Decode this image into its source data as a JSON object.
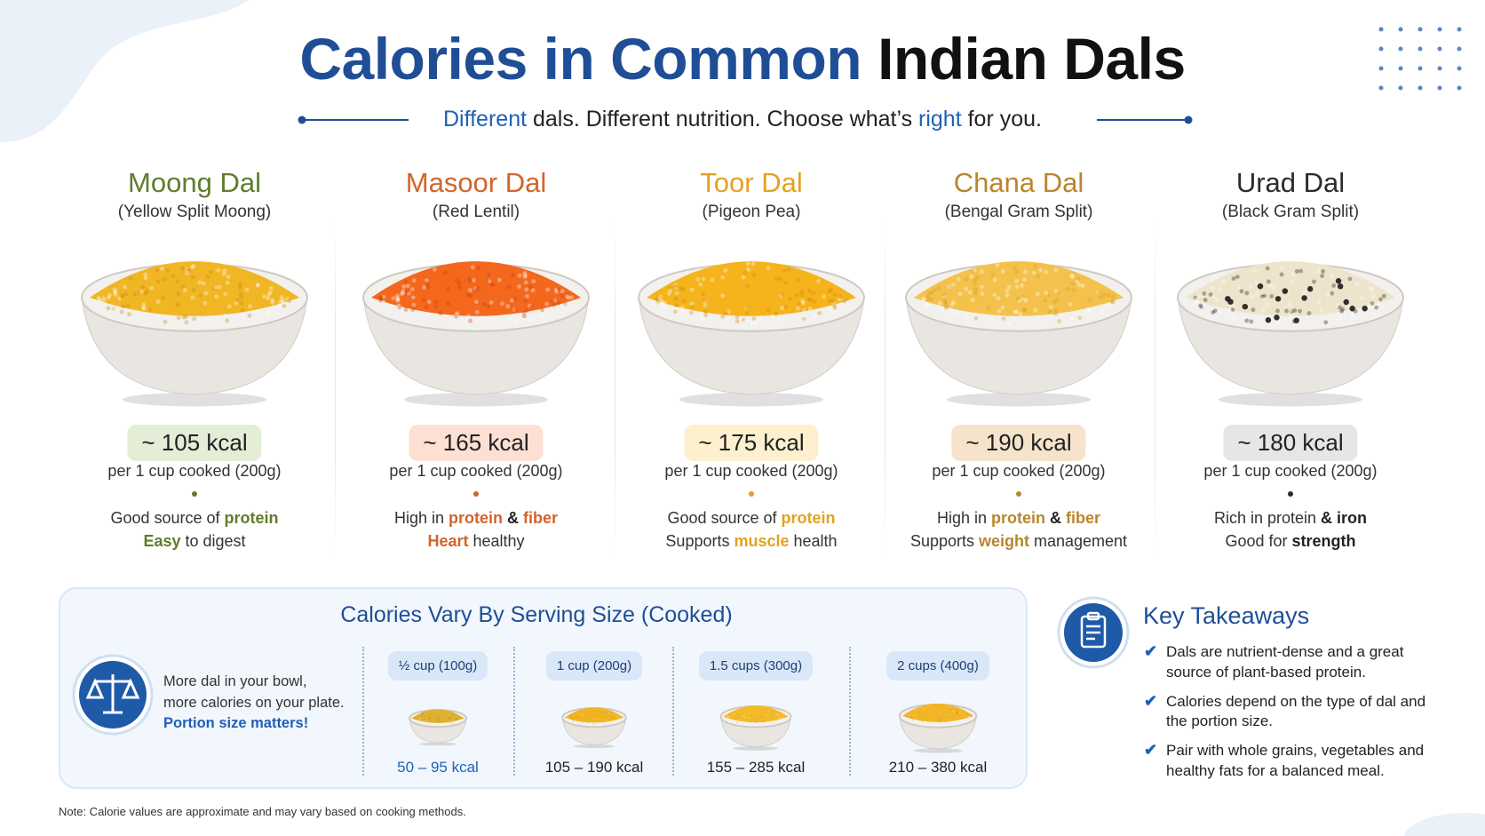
{
  "header": {
    "title": [
      {
        "text": "Calories in Common",
        "style": "accent"
      },
      {
        "text": "Indian Dals",
        "style": "plain"
      }
    ],
    "subtitle": [
      {
        "text": "Different",
        "style": "accent"
      },
      {
        "text": " dals. Different nutrition. Choose what’s "
      },
      {
        "text": "right",
        "style": "accent"
      },
      {
        "text": " for you."
      }
    ]
  },
  "dals": [
    {
      "name": "Moong Dal",
      "subtitle": "(Yellow Split Moong)",
      "calories": "~ 105 kcal",
      "serving": "per 1 cup cooked (200g)",
      "color": "#5e7d2c",
      "badge": "#e4edd6",
      "grain": "#f1b623",
      "speck": "#c98a10",
      "lines": [
        [
          {
            "text": "Good source of "
          },
          {
            "text": "protein",
            "style": "accent"
          }
        ],
        [
          {
            "text": "Easy",
            "style": "accent"
          },
          {
            "text": " to digest"
          }
        ]
      ]
    },
    {
      "name": "Masoor Dal",
      "subtitle": "(Red Lentil)",
      "calories": "~ 165 kcal",
      "serving": "per 1 cup cooked (200g)",
      "color": "#d2642a",
      "badge": "#fde0d3",
      "grain": "#f3681c",
      "speck": "#c8430c",
      "lines": [
        [
          {
            "text": "High in "
          },
          {
            "text": "protein",
            "style": "accent"
          },
          {
            "text": " & ",
            "style": "bold"
          },
          {
            "text": "fiber",
            "style": "accent"
          }
        ],
        [
          {
            "text": "Heart",
            "style": "accent"
          },
          {
            "text": " healthy"
          }
        ]
      ]
    },
    {
      "name": "Toor Dal",
      "subtitle": "(Pigeon Pea)",
      "calories": "~ 175 kcal",
      "serving": "per 1 cup cooked (200g)",
      "color": "#e3a21f",
      "badge": "#fdf0cf",
      "grain": "#f5b41c",
      "speck": "#d18a0a",
      "lines": [
        [
          {
            "text": "Good source of "
          },
          {
            "text": "protein",
            "style": "accent"
          }
        ],
        [
          {
            "text": "Supports "
          },
          {
            "text": "muscle",
            "style": "accent"
          },
          {
            "text": " health"
          }
        ]
      ]
    },
    {
      "name": "Chana Dal",
      "subtitle": "(Bengal Gram Split)",
      "calories": "~ 190 kcal",
      "serving": "per 1 cup cooked (200g)",
      "color": "#b8862e",
      "badge": "#f5e4cb",
      "grain": "#f4c24c",
      "speck": "#d69a22",
      "lines": [
        [
          {
            "text": "High in "
          },
          {
            "text": "protein",
            "style": "accent"
          },
          {
            "text": " & ",
            "style": "bold"
          },
          {
            "text": "fiber",
            "style": "accent"
          }
        ],
        [
          {
            "text": "Supports "
          },
          {
            "text": "weight",
            "style": "accent"
          },
          {
            "text": " management"
          }
        ]
      ]
    },
    {
      "name": "Urad Dal",
      "subtitle": "(Black Gram Split)",
      "calories": "~ 180 kcal",
      "serving": "per 1 cup cooked (200g)",
      "color": "#2b2b2b",
      "badge": "#e6e6e6",
      "grain": "#eee4cc",
      "speck": "#1c1c1c",
      "lines": [
        [
          {
            "text": "Rich in protein "
          },
          {
            "text": "& iron",
            "style": "bold"
          }
        ],
        [
          {
            "text": "Good for "
          },
          {
            "text": "strength",
            "style": "bold"
          }
        ]
      ]
    }
  ],
  "servings": {
    "title": "Calories Vary By Serving Size (Cooked)",
    "intro": [
      "More dal in your bowl,",
      "more calories on your plate.",
      "Portion size matters!"
    ],
    "items": [
      {
        "label": "½ cup (100g)",
        "range": "50 – 95 kcal"
      },
      {
        "label": "1 cup (200g)",
        "range": "105 – 190 kcal"
      },
      {
        "label": "1.5 cups (300g)",
        "range": "155 – 285 kcal"
      },
      {
        "label": "2 cups (400g)",
        "range": "210 – 380 kcal"
      }
    ]
  },
  "takeaways": {
    "title": "Key Takeaways",
    "items": [
      "Dals are nutrient-dense and a great source of plant-based protein.",
      "Calories depend on the type of dal and the portion size.",
      "Pair with whole grains, vegetables and healthy fats for a balanced meal."
    ]
  },
  "note": "Note: Calorie values are approximate and may vary based on cooking methods."
}
